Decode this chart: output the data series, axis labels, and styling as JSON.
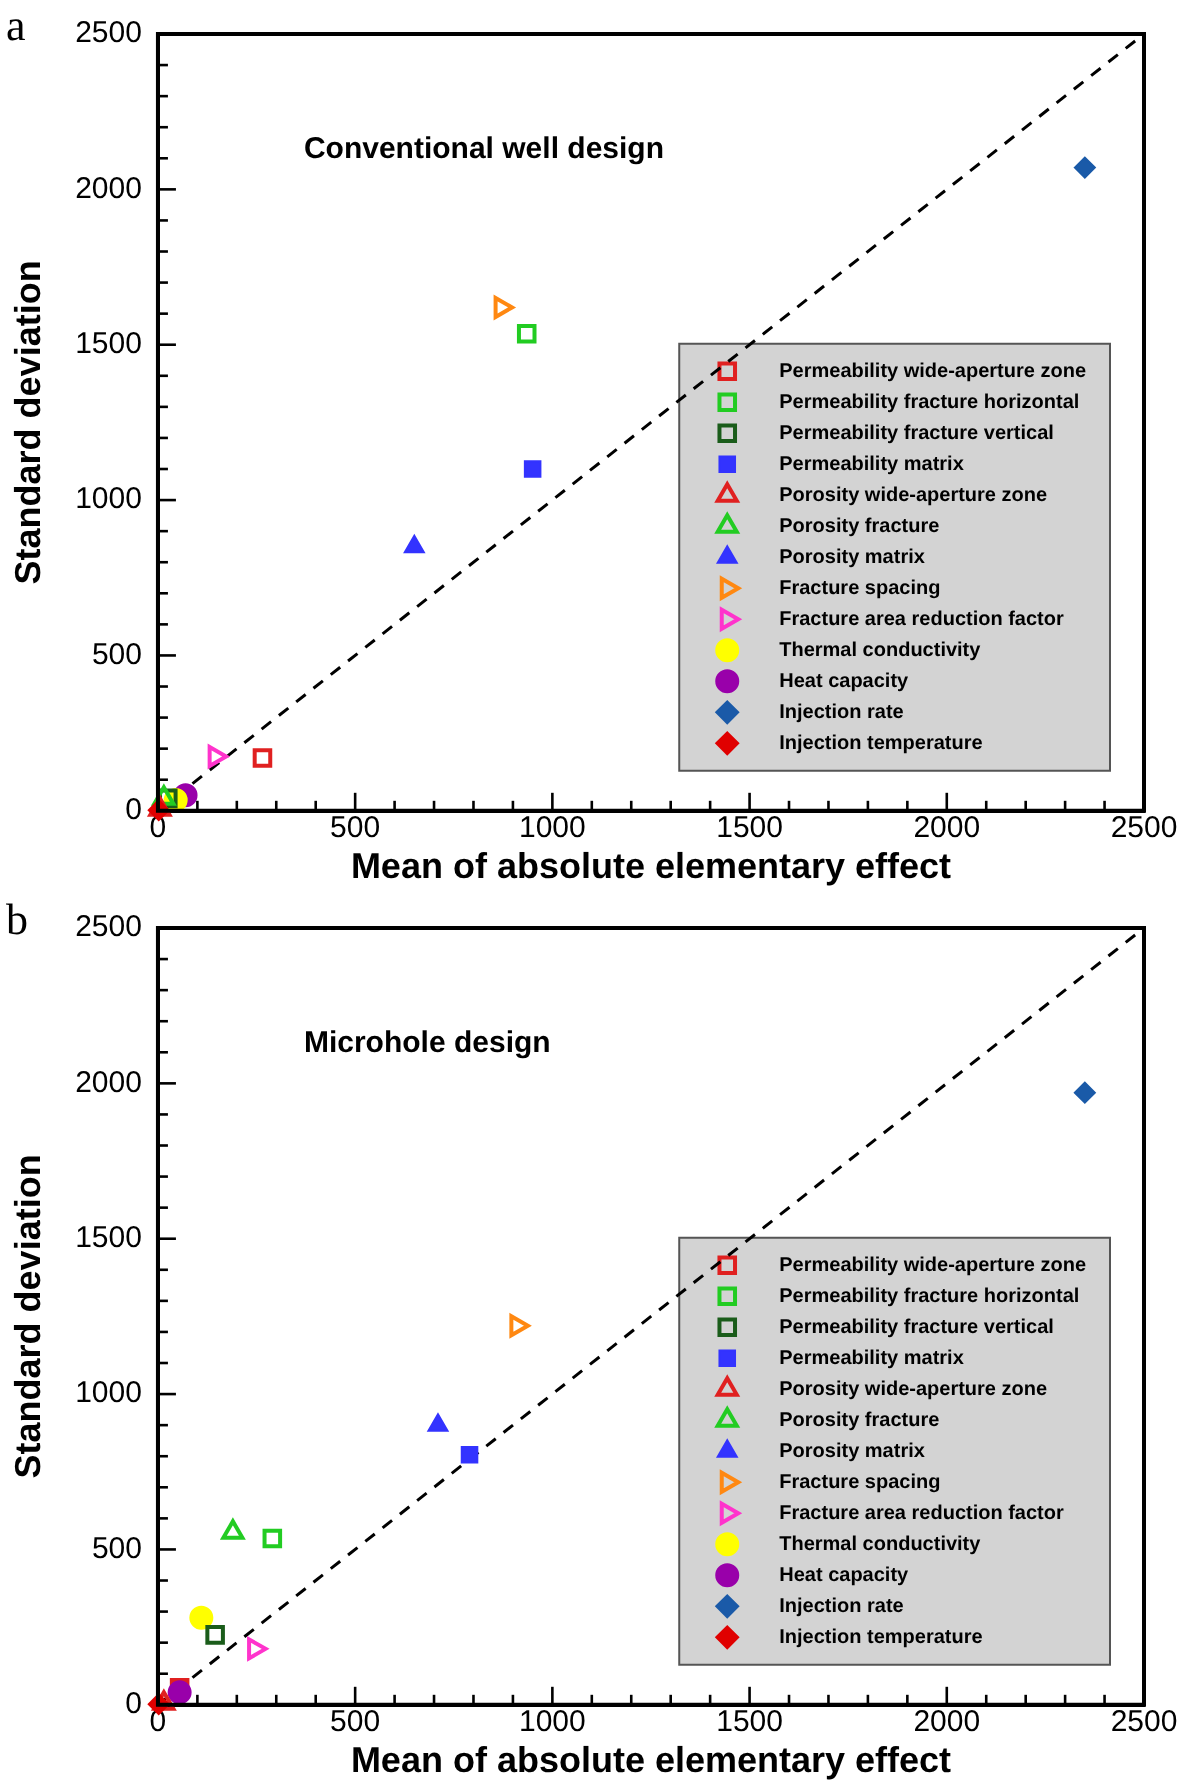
{
  "chart_data": [
    {
      "type": "scatter",
      "title": "Conventional well design",
      "xlabel": "Mean of absolute elementary effect",
      "ylabel": "Standard deviation",
      "annotations": [
        "a"
      ],
      "xlim": [
        0,
        2500
      ],
      "ylim": [
        0,
        2500
      ],
      "xticks": [
        0,
        500,
        1000,
        1500,
        2000,
        2500
      ],
      "yticks": [
        0,
        500,
        1000,
        1500,
        2000,
        2500
      ],
      "legend": "bottom right",
      "series": [
        {
          "type": "line",
          "color": "#000000",
          "marker": "none",
          "line_style": "dashed",
          "x": [
            0,
            2500
          ],
          "values": [
            0,
            2500
          ]
        },
        {
          "name": "Permeability wide-aperture zone",
          "color": "#e02020",
          "marker": "square-open",
          "x": [
            265
          ],
          "values": [
            170
          ]
        },
        {
          "name": "Permeability fracture horizontal",
          "color": "#22cc22",
          "marker": "square-open",
          "x": [
            935
          ],
          "values": [
            1535
          ]
        },
        {
          "name": "Permeability fracture vertical",
          "color": "#1a5c1a",
          "marker": "square-open",
          "x": [
            25
          ],
          "values": [
            40
          ]
        },
        {
          "name": "Permeability matrix",
          "color": "#3333ff",
          "marker": "square",
          "x": [
            950
          ],
          "values": [
            1100
          ]
        },
        {
          "name": "Porosity wide-aperture zone",
          "color": "#e02020",
          "marker": "triangle-open",
          "x": [
            5
          ],
          "values": [
            5
          ]
        },
        {
          "name": "Porosity fracture",
          "color": "#22cc22",
          "marker": "triangle-open",
          "x": [
            15
          ],
          "values": [
            40
          ]
        },
        {
          "name": "Porosity matrix",
          "color": "#3333ff",
          "marker": "triangle",
          "x": [
            650
          ],
          "values": [
            850
          ]
        },
        {
          "name": "Fracture spacing",
          "color": "#ff8811",
          "marker": "triangle-right-open",
          "x": [
            870
          ],
          "values": [
            1620
          ]
        },
        {
          "name": "Fracture area reduction factor",
          "color": "#ff33cc",
          "marker": "triangle-right-open",
          "x": [
            145
          ],
          "values": [
            175
          ]
        },
        {
          "name": "Thermal conductivity",
          "color": "#ffff00",
          "marker": "circle",
          "x": [
            45
          ],
          "values": [
            35
          ]
        },
        {
          "name": "Heat capacity",
          "color": "#9900aa",
          "marker": "circle",
          "x": [
            70
          ],
          "values": [
            50
          ]
        },
        {
          "name": "Injection rate",
          "color": "#1a5aa8",
          "marker": "diamond",
          "x": [
            2350
          ],
          "values": [
            2070
          ]
        },
        {
          "name": "Injection temperature",
          "color": "#e00000",
          "marker": "diamond",
          "x": [
            2
          ],
          "values": [
            2
          ]
        }
      ]
    },
    {
      "type": "scatter",
      "title": "Microhole design",
      "xlabel": "Mean of absolute elementary effect",
      "ylabel": "Standard deviation",
      "annotations": [
        "b"
      ],
      "xlim": [
        0,
        2500
      ],
      "ylim": [
        0,
        2500
      ],
      "xticks": [
        0,
        500,
        1000,
        1500,
        2000,
        2500
      ],
      "yticks": [
        0,
        500,
        1000,
        1500,
        2000,
        2500
      ],
      "legend": "bottom right",
      "series": [
        {
          "type": "line",
          "color": "#000000",
          "marker": "none",
          "line_style": "dashed",
          "x": [
            0,
            2500
          ],
          "values": [
            0,
            2500
          ]
        },
        {
          "name": "Permeability wide-aperture zone",
          "color": "#e02020",
          "marker": "square-open",
          "x": [
            55
          ],
          "values": [
            55
          ]
        },
        {
          "name": "Permeability fracture horizontal",
          "color": "#22cc22",
          "marker": "square-open",
          "x": [
            290
          ],
          "values": [
            535
          ]
        },
        {
          "name": "Permeability fracture vertical",
          "color": "#1a5c1a",
          "marker": "square-open",
          "x": [
            145
          ],
          "values": [
            225
          ]
        },
        {
          "name": "Permeability matrix",
          "color": "#3333ff",
          "marker": "square",
          "x": [
            790
          ],
          "values": [
            805
          ]
        },
        {
          "name": "Porosity wide-aperture zone",
          "color": "#e02020",
          "marker": "triangle-open",
          "x": [
            15
          ],
          "values": [
            5
          ]
        },
        {
          "name": "Porosity fracture",
          "color": "#22cc22",
          "marker": "triangle-open",
          "x": [
            190
          ],
          "values": [
            555
          ]
        },
        {
          "name": "Porosity matrix",
          "color": "#3333ff",
          "marker": "triangle",
          "x": [
            710
          ],
          "values": [
            900
          ]
        },
        {
          "name": "Fracture spacing",
          "color": "#ff8811",
          "marker": "triangle-right-open",
          "x": [
            910
          ],
          "values": [
            1220
          ]
        },
        {
          "name": "Fracture area reduction factor",
          "color": "#ff33cc",
          "marker": "triangle-right-open",
          "x": [
            245
          ],
          "values": [
            180
          ]
        },
        {
          "name": "Thermal conductivity",
          "color": "#ffff00",
          "marker": "circle",
          "x": [
            110
          ],
          "values": [
            280
          ]
        },
        {
          "name": "Heat capacity",
          "color": "#9900aa",
          "marker": "circle",
          "x": [
            55
          ],
          "values": [
            40
          ]
        },
        {
          "name": "Injection rate",
          "color": "#1a5aa8",
          "marker": "diamond",
          "x": [
            2350
          ],
          "values": [
            1970
          ]
        },
        {
          "name": "Injection temperature",
          "color": "#e00000",
          "marker": "diamond",
          "x": [
            2
          ],
          "values": [
            2
          ]
        }
      ]
    }
  ]
}
